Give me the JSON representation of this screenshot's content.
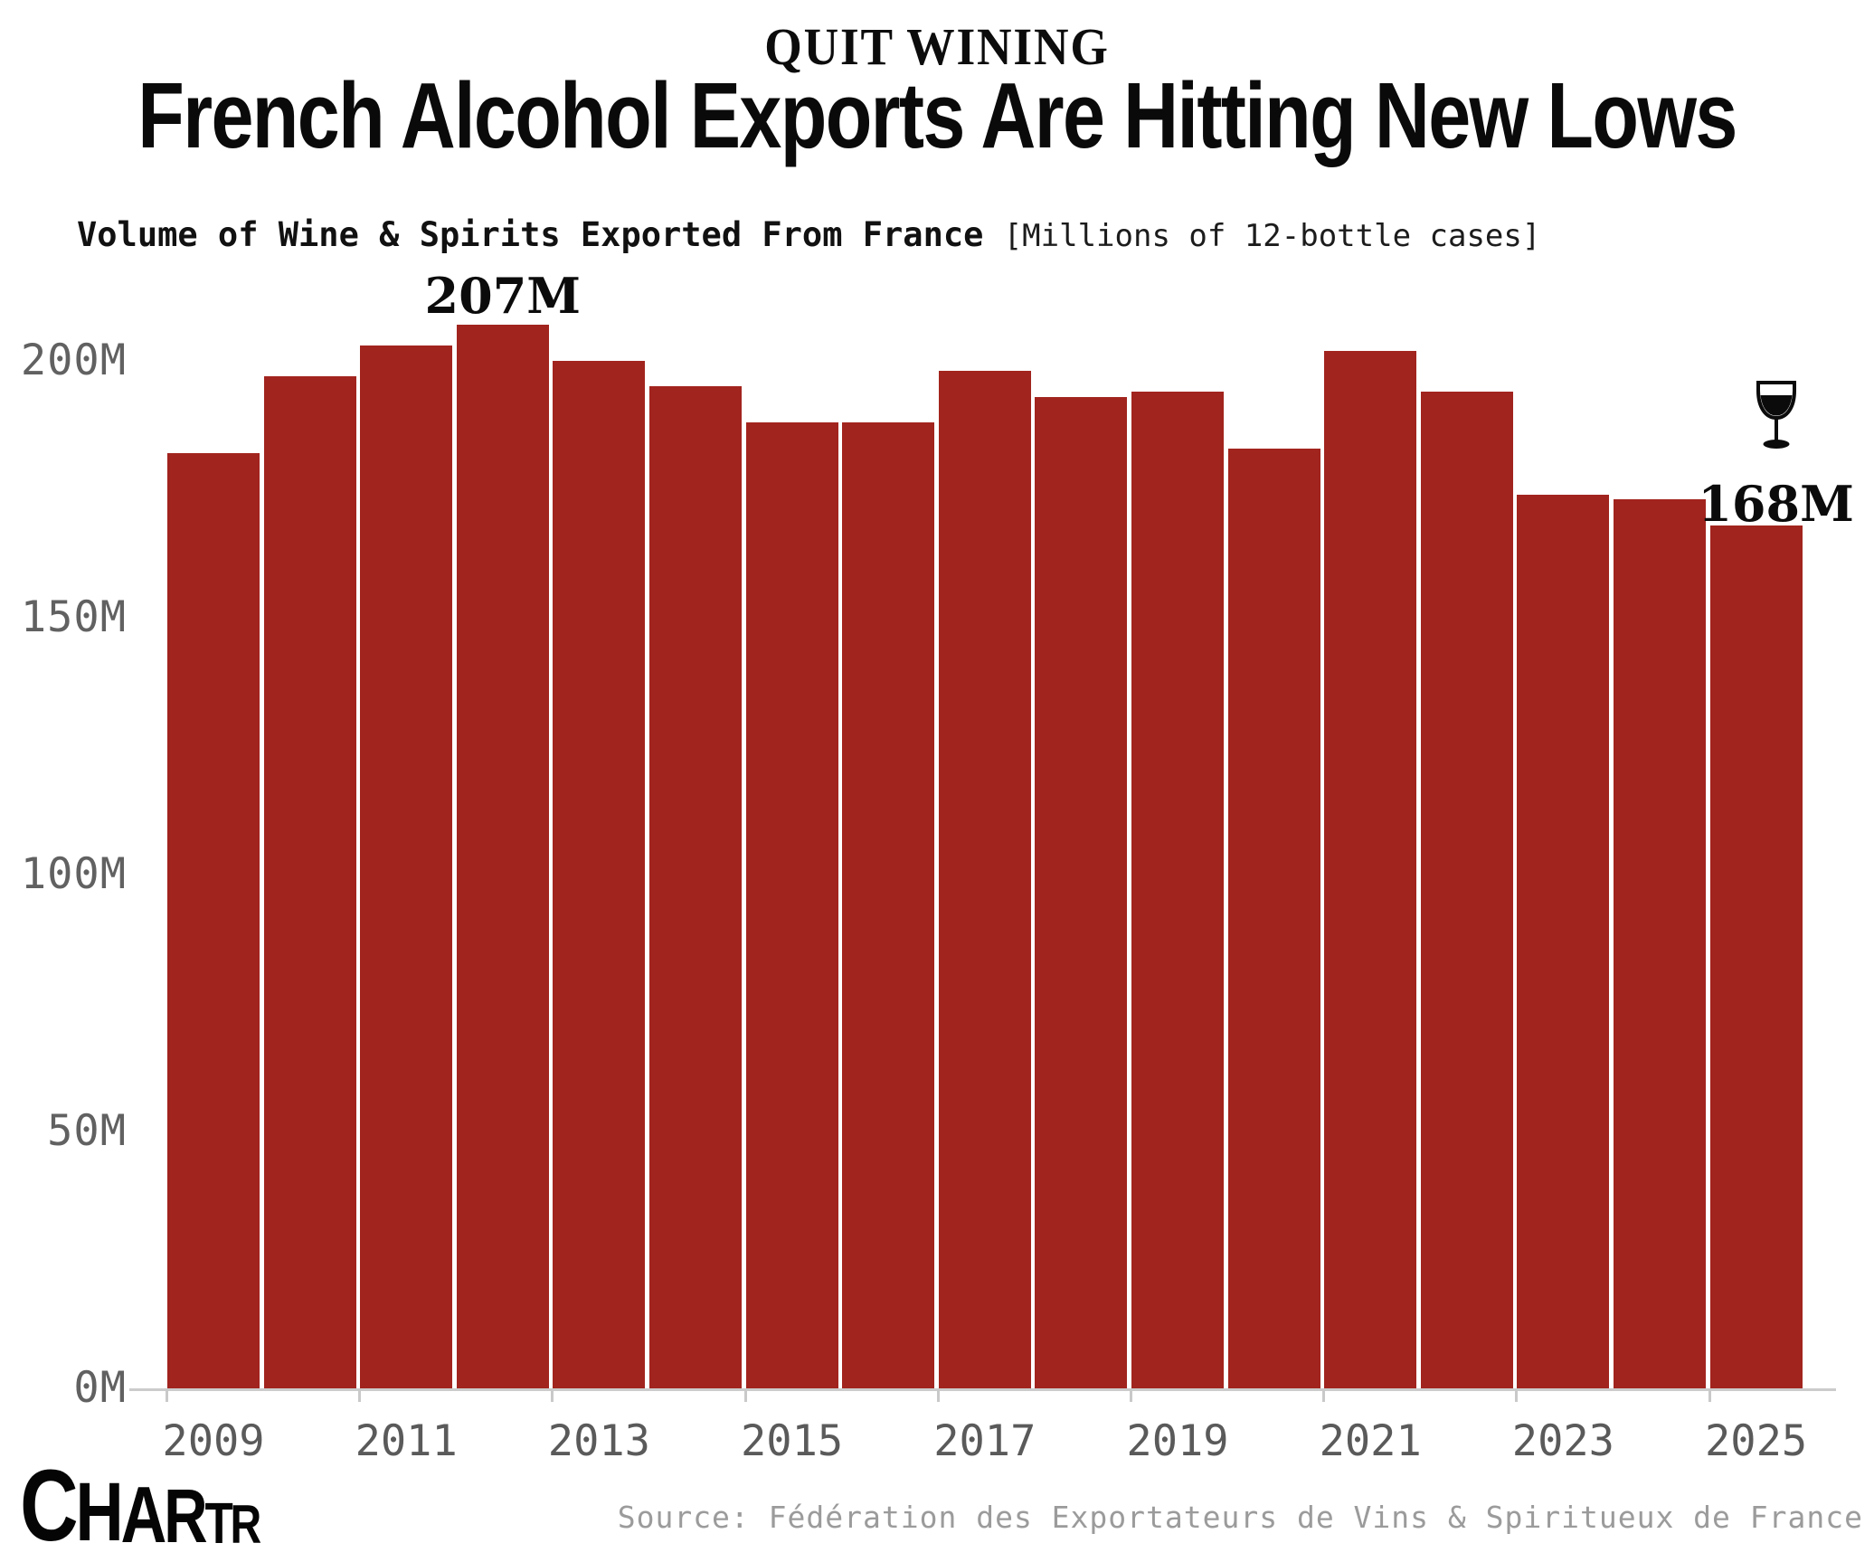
{
  "header": {
    "kicker": "QUIT WINING",
    "title": "French Alcohol Exports Are Hitting New Lows",
    "subtitle_bold": "Volume of Wine & Spirits Exported From France",
    "subtitle_note": "[Millions of 12-bottle cases]"
  },
  "chart_data": {
    "type": "bar",
    "title": "French Alcohol Exports Are Hitting New Lows",
    "subtitle": "Volume of Wine & Spirits Exported From France [Millions of 12-bottle cases]",
    "categories": [
      2009,
      2010,
      2011,
      2012,
      2013,
      2014,
      2015,
      2016,
      2017,
      2018,
      2019,
      2020,
      2021,
      2022,
      2023,
      2024,
      2025
    ],
    "values": [
      182,
      197,
      203,
      207,
      200,
      195,
      188,
      188,
      198,
      193,
      194,
      183,
      202,
      194,
      174,
      173,
      168
    ],
    "unit": "M",
    "xlabel": "",
    "ylabel": "",
    "ylim": [
      0,
      217
    ],
    "y_tick_values": [
      0,
      50,
      100,
      150,
      200
    ],
    "y_tick_labels": [
      "0M",
      "50M",
      "100M",
      "150M",
      "200M"
    ],
    "x_tick_labels": [
      "2009",
      "2011",
      "2013",
      "2015",
      "2017",
      "2019",
      "2021",
      "2023",
      "2025"
    ],
    "grid": "off",
    "legend": "none",
    "bar_color": "#a2241e",
    "annotations": [
      {
        "text": "207M",
        "year": 2012,
        "kind": "peak-value"
      },
      {
        "text": "168M",
        "year": 2025,
        "kind": "latest-value",
        "icon": "wine-glass-icon"
      }
    ]
  },
  "footer": {
    "logo_text": "CHARTR",
    "source": "Source: Fédération des Exportateurs de Vins & Spiritueux de France"
  }
}
